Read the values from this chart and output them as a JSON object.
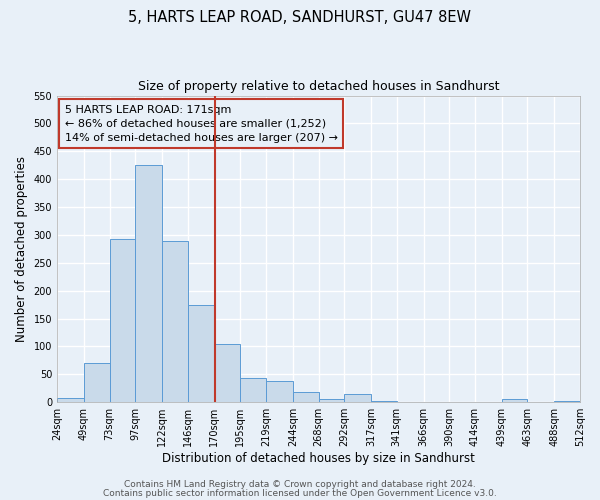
{
  "title": "5, HARTS LEAP ROAD, SANDHURST, GU47 8EW",
  "subtitle": "Size of property relative to detached houses in Sandhurst",
  "xlabel": "Distribution of detached houses by size in Sandhurst",
  "ylabel": "Number of detached properties",
  "bin_edges": [
    24,
    49,
    73,
    97,
    122,
    146,
    170,
    195,
    219,
    244,
    268,
    292,
    317,
    341,
    366,
    390,
    414,
    439,
    463,
    488,
    512
  ],
  "bar_values": [
    8,
    70,
    292,
    425,
    290,
    175,
    105,
    44,
    38,
    18,
    5,
    15,
    2,
    0,
    0,
    0,
    0,
    5,
    0,
    2
  ],
  "bar_color": "#c9daea",
  "bar_edge_color": "#5b9bd5",
  "property_size": 171,
  "vline_color": "#c0392b",
  "annotation_line1": "5 HARTS LEAP ROAD: 171sqm",
  "annotation_line2": "← 86% of detached houses are smaller (1,252)",
  "annotation_line3": "14% of semi-detached houses are larger (207) →",
  "ylim": [
    0,
    550
  ],
  "yticks": [
    0,
    50,
    100,
    150,
    200,
    250,
    300,
    350,
    400,
    450,
    500,
    550
  ],
  "footer_line1": "Contains HM Land Registry data © Crown copyright and database right 2024.",
  "footer_line2": "Contains public sector information licensed under the Open Government Licence v3.0.",
  "background_color": "#e8f0f8",
  "grid_color": "#ffffff",
  "title_fontsize": 10.5,
  "subtitle_fontsize": 9,
  "tick_fontsize": 7,
  "xlabel_fontsize": 8.5,
  "ylabel_fontsize": 8.5,
  "annotation_fontsize": 8,
  "footer_fontsize": 6.5
}
